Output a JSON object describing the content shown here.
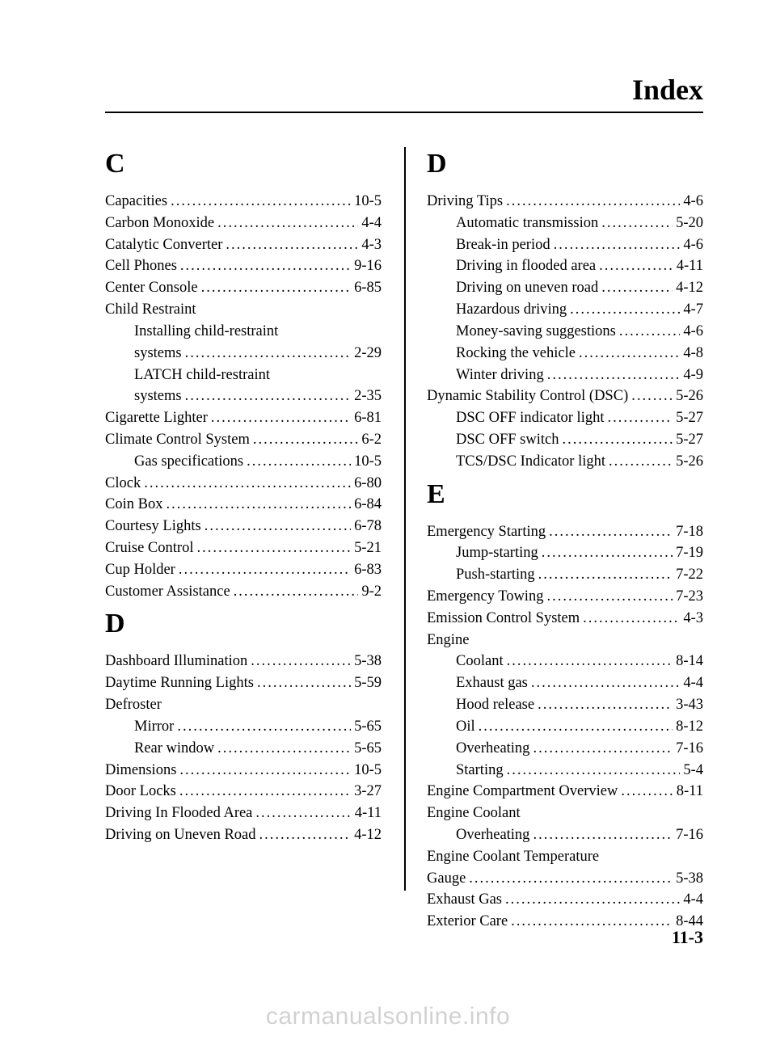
{
  "header": {
    "title": "Index"
  },
  "footer": {
    "page": "11-3"
  },
  "watermark": "carmanualsonline.info",
  "left": {
    "sections": [
      {
        "letter": "C",
        "entries": [
          {
            "label": "Capacities",
            "page": "10-5"
          },
          {
            "label": "Carbon Monoxide",
            "page": "4-4"
          },
          {
            "label": "Catalytic Converter",
            "page": "4-3"
          },
          {
            "label": "Cell Phones",
            "page": "9-16"
          },
          {
            "label": "Center Console",
            "page": "6-85"
          },
          {
            "label": "Child Restraint",
            "noleader": true
          },
          {
            "label": "Installing child-restraint",
            "indent": 1,
            "noleader": true,
            "breakrow": true,
            "label2": "systems",
            "page": "2-29"
          },
          {
            "label": "LATCH child-restraint",
            "indent": 1,
            "noleader": true,
            "breakrow": true,
            "label2": "systems",
            "page": "2-35"
          },
          {
            "label": "Cigarette Lighter",
            "page": "6-81"
          },
          {
            "label": "Climate Control System",
            "page": "6-2"
          },
          {
            "label": "Gas specifications",
            "indent": 1,
            "page": "10-5"
          },
          {
            "label": "Clock",
            "page": "6-80"
          },
          {
            "label": "Coin Box",
            "page": "6-84"
          },
          {
            "label": "Courtesy Lights",
            "page": "6-78"
          },
          {
            "label": "Cruise Control",
            "page": "5-21"
          },
          {
            "label": "Cup Holder",
            "page": "6-83"
          },
          {
            "label": "Customer Assistance",
            "page": "9-2"
          }
        ]
      },
      {
        "letter": "D",
        "entries": [
          {
            "label": "Dashboard Illumination",
            "page": "5-38"
          },
          {
            "label": "Daytime Running Lights",
            "page": "5-59"
          },
          {
            "label": "Defroster",
            "noleader": true
          },
          {
            "label": "Mirror",
            "indent": 1,
            "page": "5-65"
          },
          {
            "label": "Rear window",
            "indent": 1,
            "page": "5-65"
          },
          {
            "label": "Dimensions",
            "page": "10-5"
          },
          {
            "label": "Door Locks",
            "page": "3-27"
          },
          {
            "label": "Driving In Flooded Area",
            "page": "4-11"
          },
          {
            "label": "Driving on Uneven Road",
            "page": "4-12"
          }
        ]
      }
    ]
  },
  "right": {
    "sections": [
      {
        "letter": "D",
        "entries": [
          {
            "label": "Driving Tips",
            "page": "4-6"
          },
          {
            "label": "Automatic transmission",
            "indent": 1,
            "page": "5-20"
          },
          {
            "label": "Break-in period",
            "indent": 1,
            "page": "4-6"
          },
          {
            "label": "Driving in flooded area",
            "indent": 1,
            "page": "4-11"
          },
          {
            "label": "Driving on uneven road",
            "indent": 1,
            "page": "4-12"
          },
          {
            "label": "Hazardous driving",
            "indent": 1,
            "page": "4-7"
          },
          {
            "label": "Money-saving suggestions",
            "indent": 1,
            "page": "4-6"
          },
          {
            "label": "Rocking the vehicle",
            "indent": 1,
            "page": "4-8"
          },
          {
            "label": "Winter driving",
            "indent": 1,
            "page": "4-9"
          },
          {
            "label": "Dynamic Stability Control (DSC)",
            "page": "5-26"
          },
          {
            "label": "DSC OFF indicator light",
            "indent": 1,
            "page": "5-27"
          },
          {
            "label": "DSC OFF switch",
            "indent": 1,
            "page": "5-27"
          },
          {
            "label": "TCS/DSC Indicator light",
            "indent": 1,
            "page": "5-26"
          }
        ]
      },
      {
        "letter": "E",
        "entries": [
          {
            "label": "Emergency Starting",
            "page": "7-18"
          },
          {
            "label": "Jump-starting",
            "indent": 1,
            "page": "7-19"
          },
          {
            "label": "Push-starting",
            "indent": 1,
            "page": "7-22"
          },
          {
            "label": "Emergency Towing",
            "page": "7-23"
          },
          {
            "label": "Emission Control System",
            "page": "4-3"
          },
          {
            "label": "Engine",
            "noleader": true
          },
          {
            "label": "Coolant",
            "indent": 1,
            "page": "8-14"
          },
          {
            "label": "Exhaust gas",
            "indent": 1,
            "page": "4-4"
          },
          {
            "label": "Hood release",
            "indent": 1,
            "page": "3-43"
          },
          {
            "label": "Oil",
            "indent": 1,
            "page": "8-12"
          },
          {
            "label": "Overheating",
            "indent": 1,
            "page": "7-16"
          },
          {
            "label": "Starting",
            "indent": 1,
            "page": "5-4"
          },
          {
            "label": "Engine Compartment Overview",
            "page": "8-11"
          },
          {
            "label": "Engine Coolant",
            "noleader": true
          },
          {
            "label": "Overheating",
            "indent": 1,
            "page": "7-16"
          },
          {
            "label": "Engine Coolant Temperature",
            "noleader": true,
            "breakrow": true,
            "plainlabel2": "Gauge",
            "page": "5-38"
          },
          {
            "label": "Exhaust Gas",
            "page": "4-4"
          },
          {
            "label": "Exterior Care",
            "page": "8-44"
          }
        ]
      }
    ]
  }
}
